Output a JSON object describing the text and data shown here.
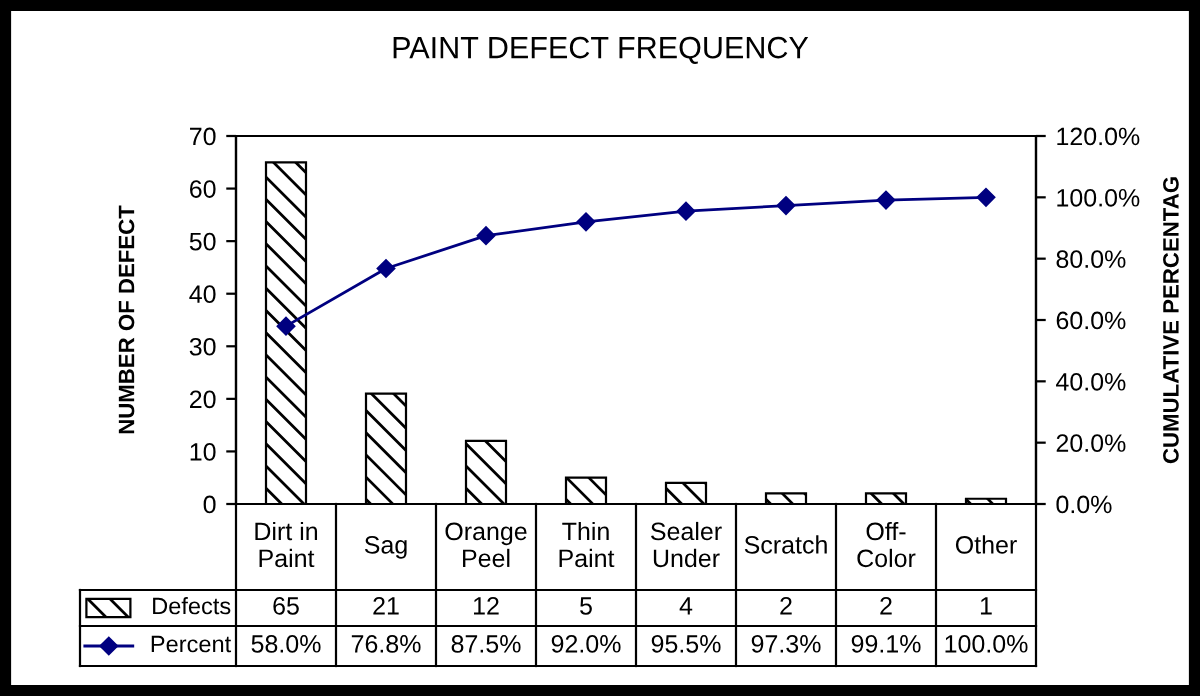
{
  "chart_data": {
    "type": "bar",
    "title": "PAINT DEFECT FREQUENCY",
    "ylabel": "NUMBER OF DEFECT",
    "y2label": "CUMULATIVE PERCENTAG",
    "categories": [
      "Dirt in\nPaint",
      "Sag",
      "Orange\nPeel",
      "Thin\nPaint",
      "Sealer\nUnder",
      "Scratch",
      "Off-\nColor",
      "Other"
    ],
    "series": [
      {
        "name": "Defects",
        "color": "#000000",
        "values": [
          65,
          21,
          12,
          5,
          4,
          2,
          2,
          1
        ],
        "value_labels": [
          "65",
          "21",
          "12",
          "5",
          "4",
          "2",
          "2",
          "1"
        ]
      },
      {
        "name": "Percent",
        "type": "line",
        "axis": "y2",
        "color": "#000080",
        "marker": "diamond",
        "values": [
          58.0,
          76.8,
          87.5,
          92.0,
          95.5,
          97.3,
          99.1,
          100.0
        ],
        "value_labels": [
          "58.0%",
          "76.8%",
          "87.5%",
          "92.0%",
          "95.5%",
          "97.3%",
          "99.1%",
          "100.0%"
        ]
      }
    ],
    "ylim": [
      0,
      70
    ],
    "yticks": [
      0,
      10,
      20,
      30,
      40,
      50,
      60,
      70
    ],
    "y2lim": [
      0,
      120
    ],
    "y2ticks": [
      {
        "value": 0,
        "label": "0.0%"
      },
      {
        "value": 20,
        "label": "20.0%"
      },
      {
        "value": 40,
        "label": "40.0%"
      },
      {
        "value": 60,
        "label": "60.0%"
      },
      {
        "value": 80,
        "label": "80.0%"
      },
      {
        "value": 100,
        "label": "100.0%"
      },
      {
        "value": 120,
        "label": "120.0%"
      }
    ],
    "grid": false,
    "legend": "bottom",
    "data_labels": true
  }
}
